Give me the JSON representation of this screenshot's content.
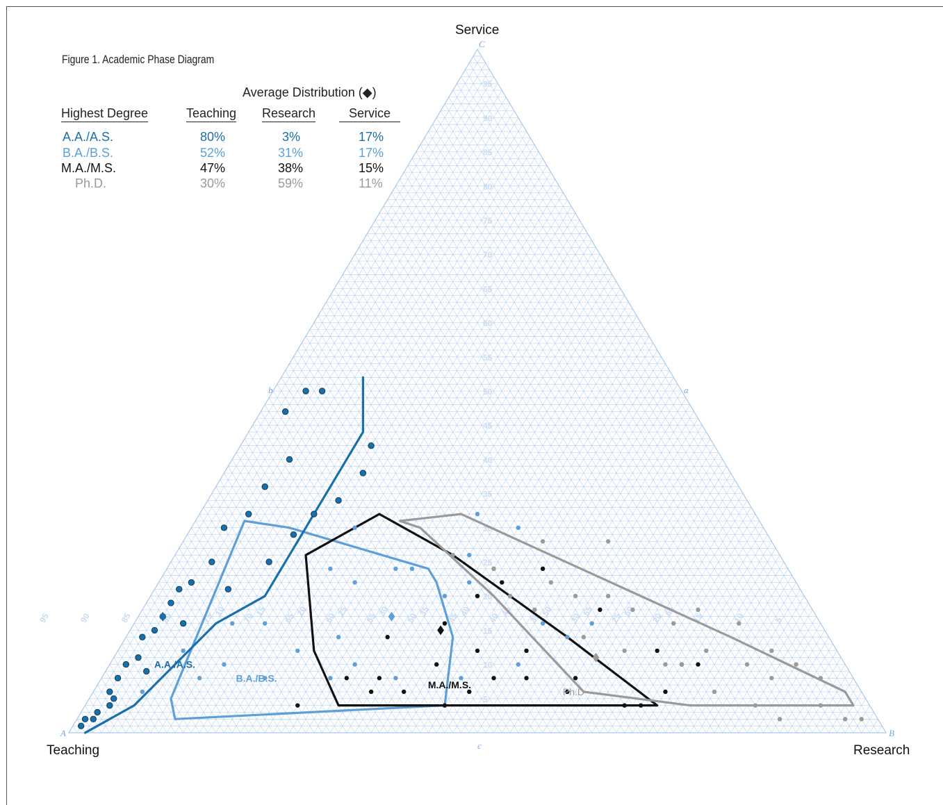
{
  "figure_title": "Figure 1. Academic Phase Diagram",
  "average_title": "Average Distribution (◆)",
  "table": {
    "headers": [
      "Highest Degree",
      "Teaching",
      "Research",
      "Service"
    ],
    "rows": [
      {
        "degree": "A.A./A.S.",
        "teaching": "80%",
        "research": "3%",
        "service": "17%",
        "color": "#1a6fa8"
      },
      {
        "degree": "B.A./B.S.",
        "teaching": "52%",
        "research": "31%",
        "service": "17%",
        "color": "#5d9fd6"
      },
      {
        "degree": "M.A./M.S.",
        "teaching": "47%",
        "research": "38%",
        "service": "15%",
        "color": "#111111"
      },
      {
        "degree": "Ph.D.",
        "teaching": "30%",
        "research": "59%",
        "service": "11%",
        "color": "#9a9a9a"
      }
    ]
  },
  "vertex_labels": {
    "top": "Service",
    "left": "Teaching",
    "right": "Research"
  },
  "vertex_letters": {
    "top": "C",
    "left": "A",
    "right": "B",
    "a": "a",
    "b": "b",
    "c": "c"
  },
  "region_labels": {
    "aa": "A.A./A.S.",
    "ba": "B.A./B.S.",
    "ma": "M.A./M.S.",
    "phd": "Ph.D"
  },
  "colors": {
    "grid": "#a8c8ec",
    "aa": "#1a6fa8",
    "ba": "#5d9fd6",
    "ma": "#111111",
    "phd": "#9a9a9a",
    "tick": "#c8dcf2"
  },
  "chart_data": {
    "type": "scatter",
    "plot_kind": "ternary",
    "axes": {
      "top": "Service",
      "left": "Teaching",
      "right": "Research"
    },
    "axis_range": [
      0,
      100
    ],
    "tick_step": 5,
    "series": [
      {
        "name": "A.A./A.S.",
        "color": "#1a6fa8",
        "points": [
          [
            98,
            1,
            1
          ],
          [
            97,
            1,
            2
          ],
          [
            96,
            2,
            2
          ],
          [
            95,
            2,
            3
          ],
          [
            93,
            3,
            4
          ],
          [
            92,
            2,
            6
          ],
          [
            90,
            2,
            8
          ],
          [
            88,
            2,
            10
          ],
          [
            86,
            3,
            11
          ],
          [
            84,
            2,
            14
          ],
          [
            82,
            3,
            15
          ],
          [
            80,
            3,
            17
          ],
          [
            78,
            3,
            19
          ],
          [
            76,
            3,
            21
          ],
          [
            74,
            4,
            22
          ],
          [
            70,
            5,
            25
          ],
          [
            66,
            4,
            30
          ],
          [
            62,
            6,
            32
          ],
          [
            58,
            6,
            36
          ],
          [
            53,
            7,
            40
          ],
          [
            50,
            3,
            47
          ],
          [
            46,
            4,
            50
          ],
          [
            44,
            6,
            50
          ],
          [
            42,
            16,
            42
          ],
          [
            45,
            17,
            38
          ],
          [
            50,
            16,
            34
          ],
          [
            54,
            14,
            32
          ],
          [
            58,
            13,
            29
          ],
          [
            63,
            12,
            25
          ],
          [
            70,
            9,
            21
          ],
          [
            78,
            6,
            16
          ],
          [
            86,
            5,
            9
          ],
          [
            92,
            3,
            5
          ]
        ],
        "average": [
          80,
          3,
          17
        ]
      },
      {
        "name": "B.A./B.S.",
        "color": "#5d9fd6",
        "points": [
          [
            88,
            6,
            6
          ],
          [
            80,
            8,
            12
          ],
          [
            72,
            12,
            16
          ],
          [
            66,
            22,
            12
          ],
          [
            60,
            30,
            10
          ],
          [
            56,
            20,
            24
          ],
          [
            54,
            24,
            22
          ],
          [
            50,
            20,
            30
          ],
          [
            48,
            28,
            24
          ],
          [
            46,
            30,
            24
          ],
          [
            44,
            36,
            20
          ],
          [
            40,
            38,
            22
          ],
          [
            38,
            36,
            26
          ],
          [
            36,
            44,
            20
          ],
          [
            34,
            50,
            16
          ],
          [
            36,
            40,
            24
          ],
          [
            30,
            46,
            24
          ],
          [
            28,
            56,
            16
          ],
          [
            32,
            54,
            14
          ],
          [
            40,
            50,
            10
          ],
          [
            48,
            44,
            8
          ],
          [
            56,
            36,
            8
          ],
          [
            64,
            28,
            8
          ],
          [
            72,
            20,
            8
          ],
          [
            80,
            12,
            8
          ],
          [
            30,
            40,
            30
          ],
          [
            34,
            34,
            32
          ],
          [
            60,
            26,
            14
          ],
          [
            68,
            16,
            16
          ],
          [
            76,
            14,
            10
          ]
        ],
        "average": [
          52,
          31,
          17
        ]
      },
      {
        "name": "M.A./M.S.",
        "color": "#111111",
        "points": [
          [
            60,
            34,
            6
          ],
          [
            56,
            38,
            6
          ],
          [
            52,
            44,
            4
          ],
          [
            48,
            46,
            6
          ],
          [
            44,
            48,
            8
          ],
          [
            40,
            52,
            8
          ],
          [
            36,
            58,
            6
          ],
          [
            30,
            66,
            4
          ],
          [
            28,
            68,
            4
          ],
          [
            58,
            34,
            8
          ],
          [
            54,
            32,
            14
          ],
          [
            46,
            38,
            16
          ],
          [
            40,
            40,
            20
          ],
          [
            36,
            42,
            22
          ],
          [
            30,
            46,
            24
          ],
          [
            26,
            56,
            18
          ],
          [
            22,
            66,
            12
          ],
          [
            24,
            70,
            6
          ],
          [
            70,
            26,
            4
          ],
          [
            62,
            30,
            8
          ],
          [
            50,
            40,
            10
          ],
          [
            44,
            44,
            12
          ],
          [
            38,
            50,
            12
          ],
          [
            34,
            58,
            8
          ],
          [
            20,
            70,
            10
          ],
          [
            18,
            72,
            10
          ]
        ],
        "average": [
          47,
          38,
          15
        ]
      },
      {
        "name": "Ph.D.",
        "color": "#9a9a9a",
        "points": [
          [
            36,
            44,
            20
          ],
          [
            30,
            48,
            22
          ],
          [
            28,
            52,
            20
          ],
          [
            24,
            56,
            20
          ],
          [
            22,
            60,
            18
          ],
          [
            18,
            66,
            16
          ],
          [
            14,
            68,
            18
          ],
          [
            10,
            74,
            16
          ],
          [
            8,
            80,
            12
          ],
          [
            6,
            84,
            10
          ],
          [
            4,
            88,
            8
          ],
          [
            20,
            70,
            10
          ],
          [
            16,
            72,
            12
          ],
          [
            12,
            78,
            10
          ],
          [
            10,
            82,
            8
          ],
          [
            6,
            90,
            4
          ],
          [
            4,
            94,
            2
          ],
          [
            2,
            96,
            2
          ],
          [
            30,
            56,
            14
          ],
          [
            26,
            62,
            12
          ],
          [
            22,
            68,
            10
          ],
          [
            18,
            76,
            6
          ],
          [
            14,
            82,
            4
          ],
          [
            12,
            86,
            2
          ],
          [
            34,
            48,
            18
          ],
          [
            40,
            34,
            26
          ],
          [
            36,
            40,
            24
          ],
          [
            28,
            44,
            28
          ],
          [
            20,
            52,
            28
          ]
        ],
        "average": [
          30,
          59,
          11
        ]
      }
    ]
  }
}
